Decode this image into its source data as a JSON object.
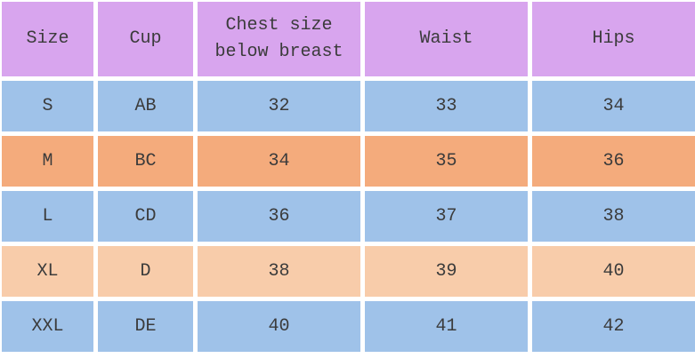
{
  "chart_data": {
    "type": "table",
    "title": "",
    "columns": [
      "Size",
      "Cup",
      "Chest size\nbelow breast",
      "Waist",
      "Hips"
    ],
    "rows": [
      [
        "S",
        "AB",
        32,
        33,
        34
      ],
      [
        "M",
        "BC",
        34,
        35,
        36
      ],
      [
        "L",
        "CD",
        36,
        37,
        38
      ],
      [
        "XL",
        "D",
        38,
        39,
        40
      ],
      [
        "XXL",
        "DE",
        40,
        41,
        42
      ]
    ],
    "row_themes": [
      "blue",
      "orange",
      "blue",
      "peach",
      "blue"
    ]
  },
  "colors": {
    "header_bg": "#d8a5ee",
    "row_blue": "#9fc2e9",
    "row_orange": "#f4ab7c",
    "row_peach": "#f8ccaa",
    "text": "#3b3b3b",
    "grid_gap": "#ffffff"
  }
}
